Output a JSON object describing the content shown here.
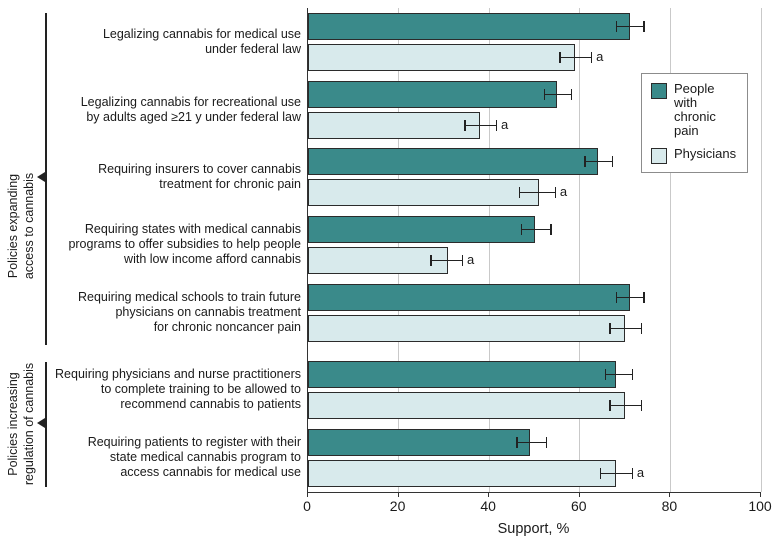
{
  "chart_data": {
    "type": "bar",
    "orientation": "horizontal",
    "title": "",
    "xlabel": "Support, %",
    "xlim": [
      0,
      100
    ],
    "xticks": [
      0,
      20,
      40,
      60,
      80,
      100
    ],
    "grid": "vertical gridlines every 20",
    "legend_position": "top-right",
    "footnote_marker": "a",
    "series_names": [
      "People with chronic pain",
      "Physicians"
    ],
    "colors": {
      "chronic_pain": "#3a8a8a",
      "physicians": "#d8eaec",
      "bar_border": "#2b2b2b",
      "error_bar": "#222222",
      "gridline": "#c9c9c9",
      "axis": "#333333"
    },
    "sections": [
      {
        "label_lines": [
          "Policies expanding",
          "access to cannabis"
        ]
      },
      {
        "label_lines": [
          "Policies increasing",
          "regulation of cannabis"
        ]
      }
    ],
    "rows": [
      {
        "section": 0,
        "label_lines": [
          "Legalizing cannabis for medical use",
          "under federal law"
        ],
        "chronic_pain": {
          "value": 71,
          "ci": [
            68,
            74
          ]
        },
        "physicians": {
          "value": 59,
          "ci": [
            55.5,
            62.5
          ],
          "footnote": "a"
        }
      },
      {
        "section": 0,
        "label_lines": [
          "Legalizing cannabis for recreational use",
          "by adults aged ≥21 y under federal law"
        ],
        "chronic_pain": {
          "value": 55,
          "ci": [
            52,
            58
          ]
        },
        "physicians": {
          "value": 38,
          "ci": [
            34.5,
            41.5
          ],
          "footnote": "a"
        }
      },
      {
        "section": 0,
        "label_lines": [
          "Requiring insurers to cover cannabis",
          "treatment for chronic pain"
        ],
        "chronic_pain": {
          "value": 64,
          "ci": [
            61,
            67
          ]
        },
        "physicians": {
          "value": 51,
          "ci": [
            46.5,
            54.5
          ],
          "footnote": "a"
        }
      },
      {
        "section": 0,
        "label_lines": [
          "Requiring states with medical cannabis",
          "programs to offer subsidies to help people",
          "with low income afford cannabis"
        ],
        "chronic_pain": {
          "value": 50,
          "ci": [
            47,
            53.5
          ]
        },
        "physicians": {
          "value": 31,
          "ci": [
            27,
            34
          ],
          "footnote": "a"
        }
      },
      {
        "section": 0,
        "label_lines": [
          "Requiring medical schools to train future",
          "physicians on cannabis treatment",
          "for chronic noncancer pain"
        ],
        "chronic_pain": {
          "value": 71,
          "ci": [
            68,
            74
          ]
        },
        "physicians": {
          "value": 70,
          "ci": [
            66.5,
            73.5
          ]
        }
      },
      {
        "section": 1,
        "label_lines": [
          "Requiring physicians and nurse practitioners",
          "to complete training to be allowed to",
          "recommend cannabis to patients"
        ],
        "chronic_pain": {
          "value": 68,
          "ci": [
            65.5,
            71.5
          ]
        },
        "physicians": {
          "value": 70,
          "ci": [
            66.5,
            73.5
          ]
        }
      },
      {
        "section": 1,
        "label_lines": [
          "Requiring patients to register with their",
          "state medical cannabis program to",
          "access cannabis for medical use"
        ],
        "chronic_pain": {
          "value": 49,
          "ci": [
            46,
            52.5
          ]
        },
        "physicians": {
          "value": 68,
          "ci": [
            64.5,
            71.5
          ],
          "footnote": "a"
        }
      }
    ]
  }
}
